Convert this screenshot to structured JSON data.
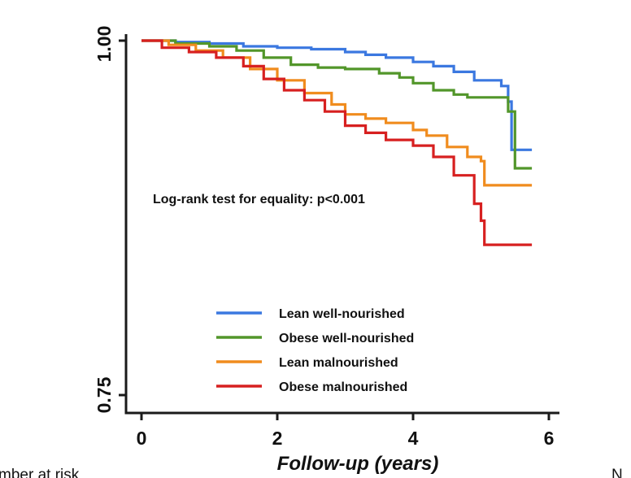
{
  "chart_data": {
    "type": "line",
    "subtype": "kaplan-meier step",
    "annotation": "Log-rank test for equality: p<0.001",
    "xlabel": "Follow-up (years)",
    "ylabel": "",
    "xlim": [
      0,
      6
    ],
    "ylim": [
      0.75,
      1.0
    ],
    "x_ticks": [
      "0",
      "2",
      "4",
      "6"
    ],
    "y_ticks": [
      "0.75",
      "1.00"
    ],
    "legend_position": "lower-center",
    "grid": false,
    "series": [
      {
        "name": "Lean well-nourished",
        "color": "#3b78e0",
        "points": [
          [
            0,
            1.0
          ],
          [
            0.5,
            0.999
          ],
          [
            1.0,
            0.998
          ],
          [
            1.5,
            0.996
          ],
          [
            2.0,
            0.995
          ],
          [
            2.5,
            0.994
          ],
          [
            3.0,
            0.992
          ],
          [
            3.3,
            0.99
          ],
          [
            3.6,
            0.988
          ],
          [
            4.0,
            0.985
          ],
          [
            4.3,
            0.982
          ],
          [
            4.6,
            0.978
          ],
          [
            4.9,
            0.972
          ],
          [
            5.3,
            0.968
          ],
          [
            5.4,
            0.957
          ],
          [
            5.45,
            0.923
          ],
          [
            5.75,
            0.923
          ]
        ]
      },
      {
        "name": "Obese well-nourished",
        "color": "#52962a",
        "points": [
          [
            0,
            1.0
          ],
          [
            0.5,
            0.998
          ],
          [
            1.0,
            0.996
          ],
          [
            1.4,
            0.993
          ],
          [
            1.8,
            0.988
          ],
          [
            2.2,
            0.983
          ],
          [
            2.6,
            0.981
          ],
          [
            3.0,
            0.98
          ],
          [
            3.5,
            0.977
          ],
          [
            3.8,
            0.974
          ],
          [
            4.0,
            0.97
          ],
          [
            4.3,
            0.965
          ],
          [
            4.6,
            0.962
          ],
          [
            4.8,
            0.96
          ],
          [
            5.3,
            0.96
          ],
          [
            5.4,
            0.95
          ],
          [
            5.5,
            0.91
          ],
          [
            5.75,
            0.91
          ]
        ]
      },
      {
        "name": "Lean malnourished",
        "color": "#f08c1e",
        "points": [
          [
            0,
            1.0
          ],
          [
            0.4,
            0.997
          ],
          [
            0.8,
            0.993
          ],
          [
            1.2,
            0.988
          ],
          [
            1.6,
            0.98
          ],
          [
            2.0,
            0.972
          ],
          [
            2.4,
            0.963
          ],
          [
            2.8,
            0.955
          ],
          [
            3.0,
            0.948
          ],
          [
            3.3,
            0.945
          ],
          [
            3.6,
            0.942
          ],
          [
            4.0,
            0.937
          ],
          [
            4.2,
            0.933
          ],
          [
            4.5,
            0.925
          ],
          [
            4.8,
            0.918
          ],
          [
            5.0,
            0.915
          ],
          [
            5.05,
            0.898
          ],
          [
            5.75,
            0.898
          ]
        ]
      },
      {
        "name": "Obese malnourished",
        "color": "#d72020",
        "points": [
          [
            0,
            1.0
          ],
          [
            0.3,
            0.995
          ],
          [
            0.7,
            0.992
          ],
          [
            1.1,
            0.988
          ],
          [
            1.5,
            0.982
          ],
          [
            1.8,
            0.973
          ],
          [
            2.1,
            0.965
          ],
          [
            2.4,
            0.958
          ],
          [
            2.7,
            0.95
          ],
          [
            3.0,
            0.94
          ],
          [
            3.3,
            0.935
          ],
          [
            3.6,
            0.93
          ],
          [
            4.0,
            0.926
          ],
          [
            4.3,
            0.918
          ],
          [
            4.6,
            0.905
          ],
          [
            4.9,
            0.885
          ],
          [
            5.0,
            0.873
          ],
          [
            5.05,
            0.856
          ],
          [
            5.75,
            0.856
          ]
        ]
      }
    ]
  },
  "edge_text": {
    "bottom_left": "mber at risk",
    "bottom_right": "N"
  }
}
